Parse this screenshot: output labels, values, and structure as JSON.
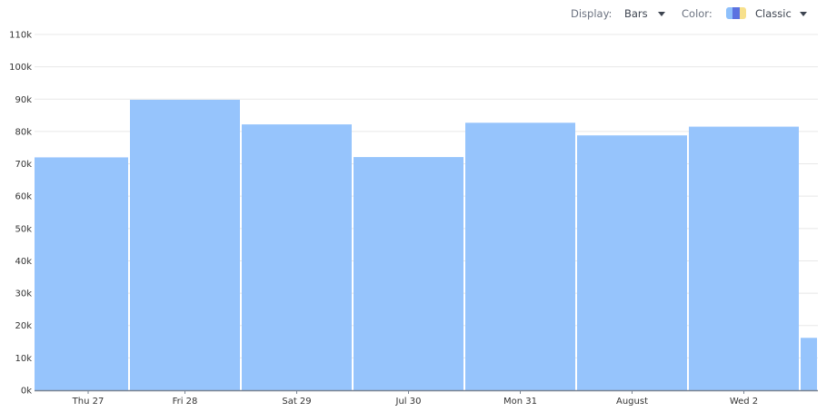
{
  "toolbar": {
    "display_label": "Display:",
    "display_value": "Bars",
    "color_label": "Color:",
    "color_value": "Classic",
    "palette_colors": [
      "#8ec0fb",
      "#5b72e0",
      "#f7e08c"
    ]
  },
  "colors": {
    "bar": "#96c4fc",
    "grid": "#e8e8e8",
    "axis": "#7a8492"
  },
  "chart_data": {
    "type": "bar",
    "categories": [
      "Thu 27",
      "Fri 28",
      "Sat 29",
      "Jul 30",
      "Mon 31",
      "August",
      "Wed 2",
      ""
    ],
    "values": [
      72000,
      89800,
      82200,
      72100,
      82700,
      78800,
      81500,
      16200
    ],
    "ylim": [
      0,
      110000
    ],
    "yticks": [
      "0k",
      "10k",
      "20k",
      "30k",
      "40k",
      "50k",
      "60k",
      "70k",
      "80k",
      "90k",
      "100k",
      "110k"
    ],
    "grid": true,
    "title": "",
    "xlabel": "",
    "ylabel": ""
  }
}
